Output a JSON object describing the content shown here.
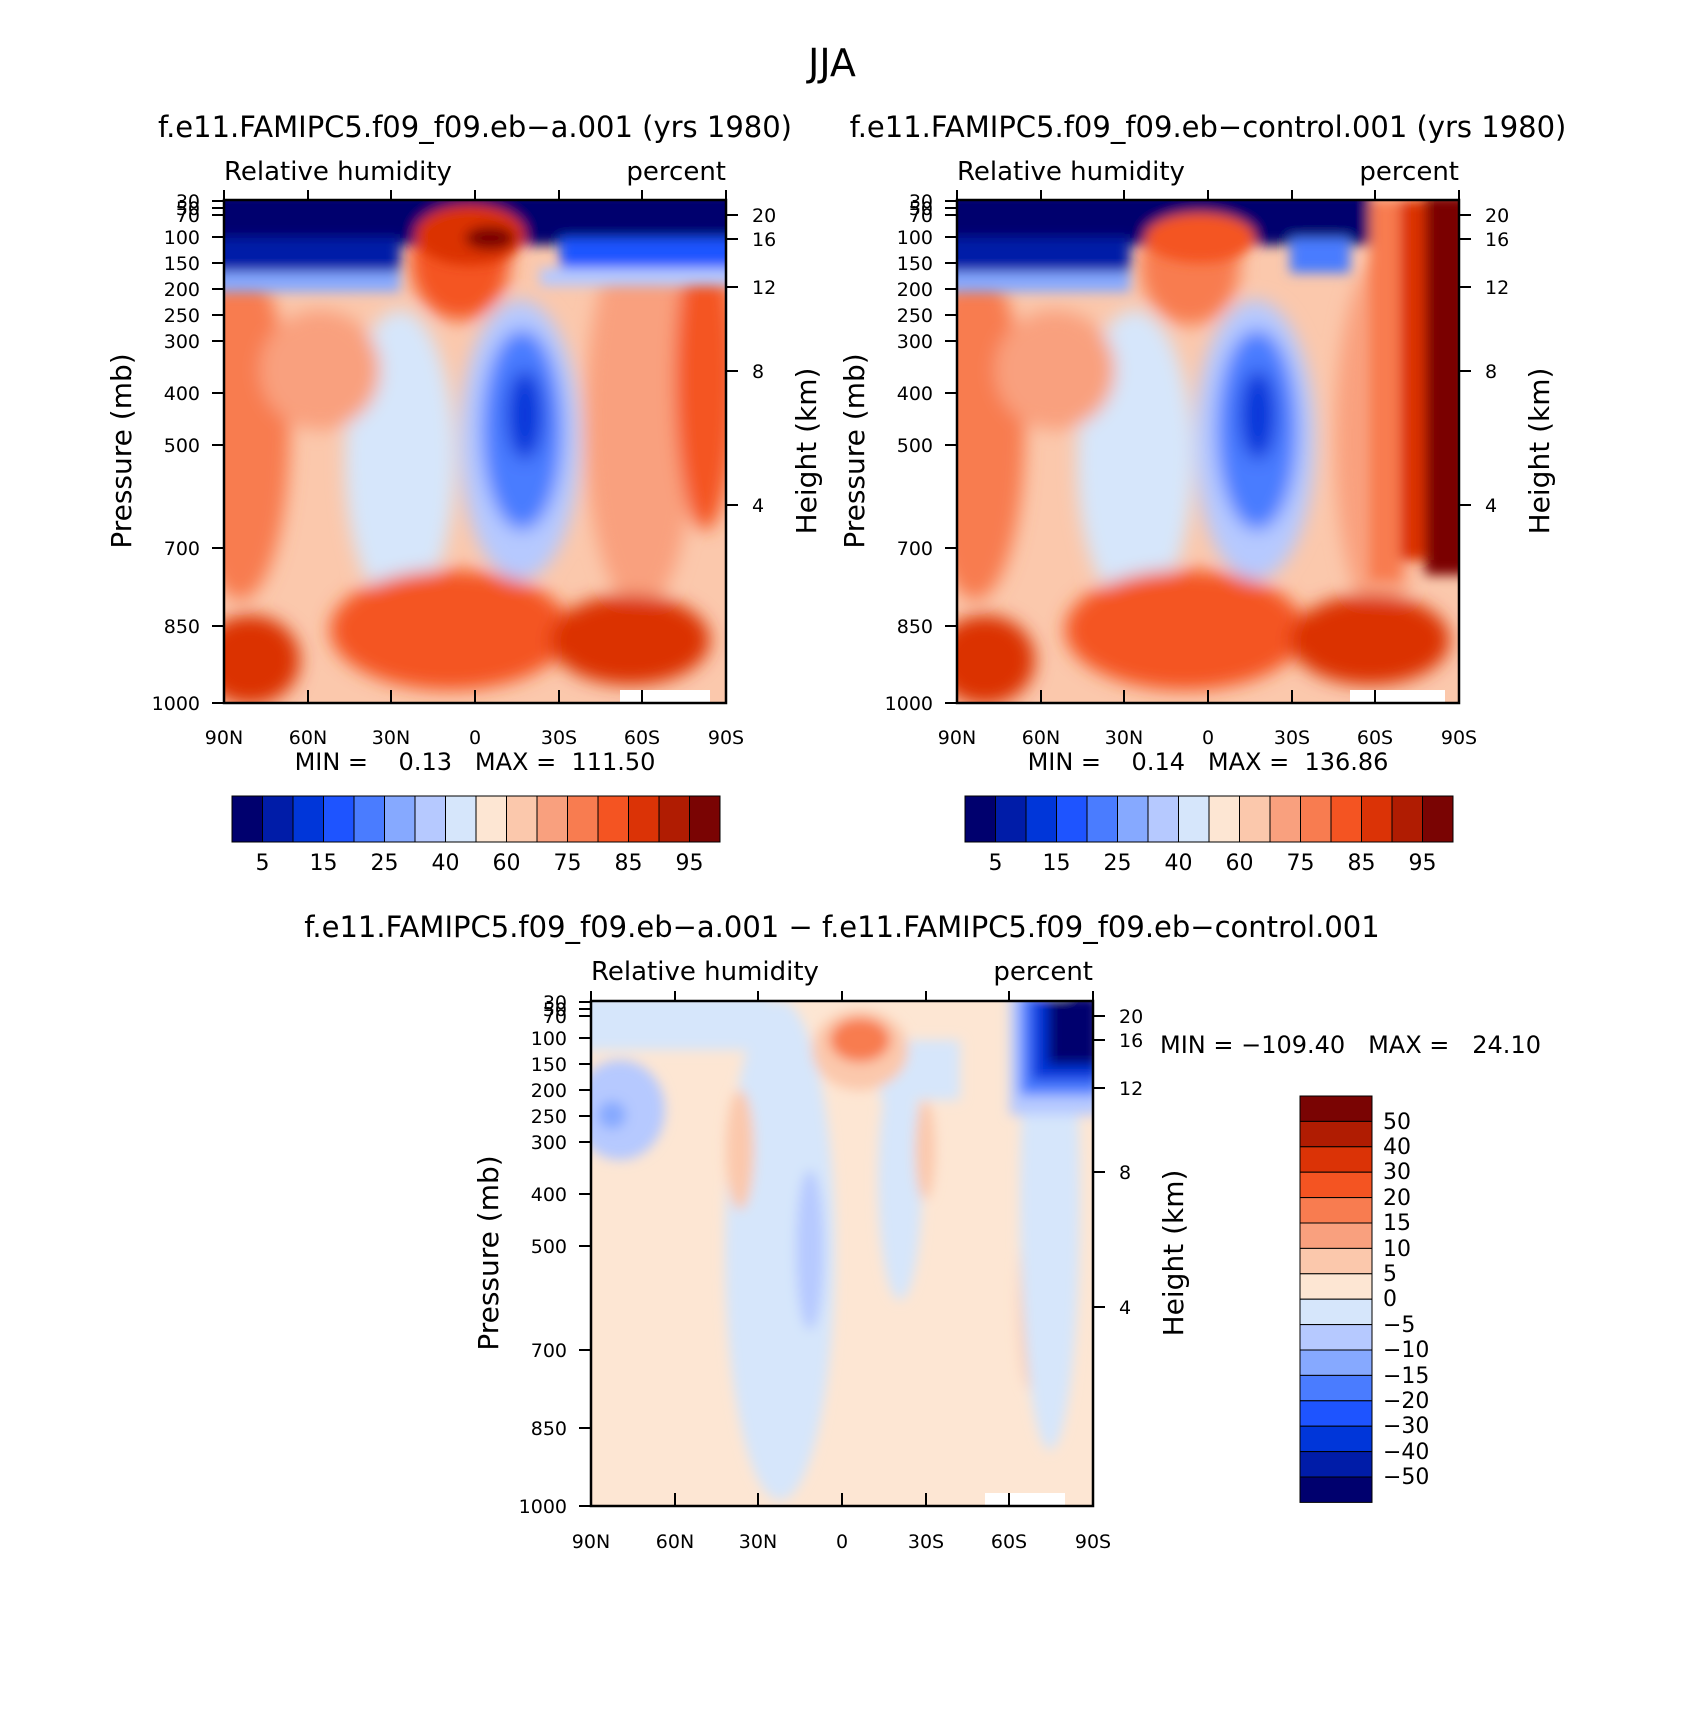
{
  "figure_title": "JJA",
  "chart_data": [
    {
      "type": "heatmap",
      "title": "f.e11.FAMIPC5.f09_f09.eb−a.001 (yrs 1980)",
      "left_label": "Relative humidity",
      "right_label": "percent",
      "ylabel": "Pressure (mb)",
      "y2label": "Height (km)",
      "xlabel": "",
      "x_ticks": [
        "90N",
        "60N",
        "30N",
        "0",
        "30S",
        "60S",
        "90S"
      ],
      "y_ticks": [
        "30",
        "50",
        "70",
        "100",
        "150",
        "200",
        "250",
        "300",
        "400",
        "500",
        "700",
        "850",
        "1000"
      ],
      "height_ticks": [
        "20",
        "16",
        "12",
        "8",
        "4"
      ],
      "min_max": "MIN =    0.13   MAX =  111.50",
      "colorbar_labels": [
        "5",
        "15",
        "25",
        "40",
        "60",
        "75",
        "85",
        "95"
      ],
      "field": "control-like RH: dry upper troposphere, moist boundary layer, dry subtropics near 15S"
    },
    {
      "type": "heatmap",
      "title": "f.e11.FAMIPC5.f09_f09.eb−control.001 (yrs 1980)",
      "left_label": "Relative humidity",
      "right_label": "percent",
      "ylabel": "Pressure (mb)",
      "y2label": "Height (km)",
      "xlabel": "",
      "x_ticks": [
        "90N",
        "60N",
        "30N",
        "0",
        "30S",
        "60S",
        "90S"
      ],
      "y_ticks": [
        "30",
        "50",
        "70",
        "100",
        "150",
        "200",
        "250",
        "300",
        "400",
        "500",
        "700",
        "850",
        "1000"
      ],
      "height_ticks": [
        "20",
        "16",
        "12",
        "8",
        "4"
      ],
      "min_max": "MIN =    0.14   MAX =  136.86",
      "colorbar_labels": [
        "5",
        "15",
        "25",
        "40",
        "60",
        "75",
        "85",
        "95"
      ],
      "field": "RH with very moist Antarctic upper troposphere"
    },
    {
      "type": "heatmap",
      "title": "f.e11.FAMIPC5.f09_f09.eb−a.001 − f.e11.FAMIPC5.f09_f09.eb−control.001",
      "left_label": "Relative humidity",
      "right_label": "percent",
      "ylabel": "Pressure (mb)",
      "y2label": "Height (km)",
      "xlabel": "",
      "x_ticks": [
        "90N",
        "60N",
        "30N",
        "0",
        "30S",
        "60S",
        "90S"
      ],
      "y_ticks": [
        "30",
        "50",
        "70",
        "100",
        "150",
        "200",
        "250",
        "300",
        "400",
        "500",
        "700",
        "850",
        "1000"
      ],
      "height_ticks": [
        "20",
        "16",
        "12",
        "8",
        "4"
      ],
      "min_max": "MIN = −109.40   MAX =   24.10",
      "colorbar_labels": [
        "50",
        "40",
        "30",
        "20",
        "15",
        "10",
        "5",
        "0",
        "−5",
        "−10",
        "−15",
        "−20",
        "−30",
        "−40",
        "−50"
      ],
      "field": "difference: mostly small; strong negative over 60S-90S upper troposphere, positive near equator 100 mb"
    }
  ],
  "colors": {
    "rh_scale": [
      "#00006e",
      "#001ca8",
      "#0036d9",
      "#1e54ff",
      "#4a7cff",
      "#86a9ff",
      "#b6c9ff",
      "#d6e6fb",
      "#fde6d3",
      "#fbc8ac",
      "#f9a07e",
      "#f87c50",
      "#f45422",
      "#db3306",
      "#b01c02",
      "#7a0403"
    ],
    "diff_scale": [
      "#7a0403",
      "#b01c02",
      "#db3306",
      "#f45422",
      "#f87c50",
      "#f9a07e",
      "#fbc8ac",
      "#fde6d3",
      "#d6e6fb",
      "#b6c9ff",
      "#86a9ff",
      "#4a7cff",
      "#1e54ff",
      "#0036d9",
      "#001ca8",
      "#00006e"
    ]
  }
}
